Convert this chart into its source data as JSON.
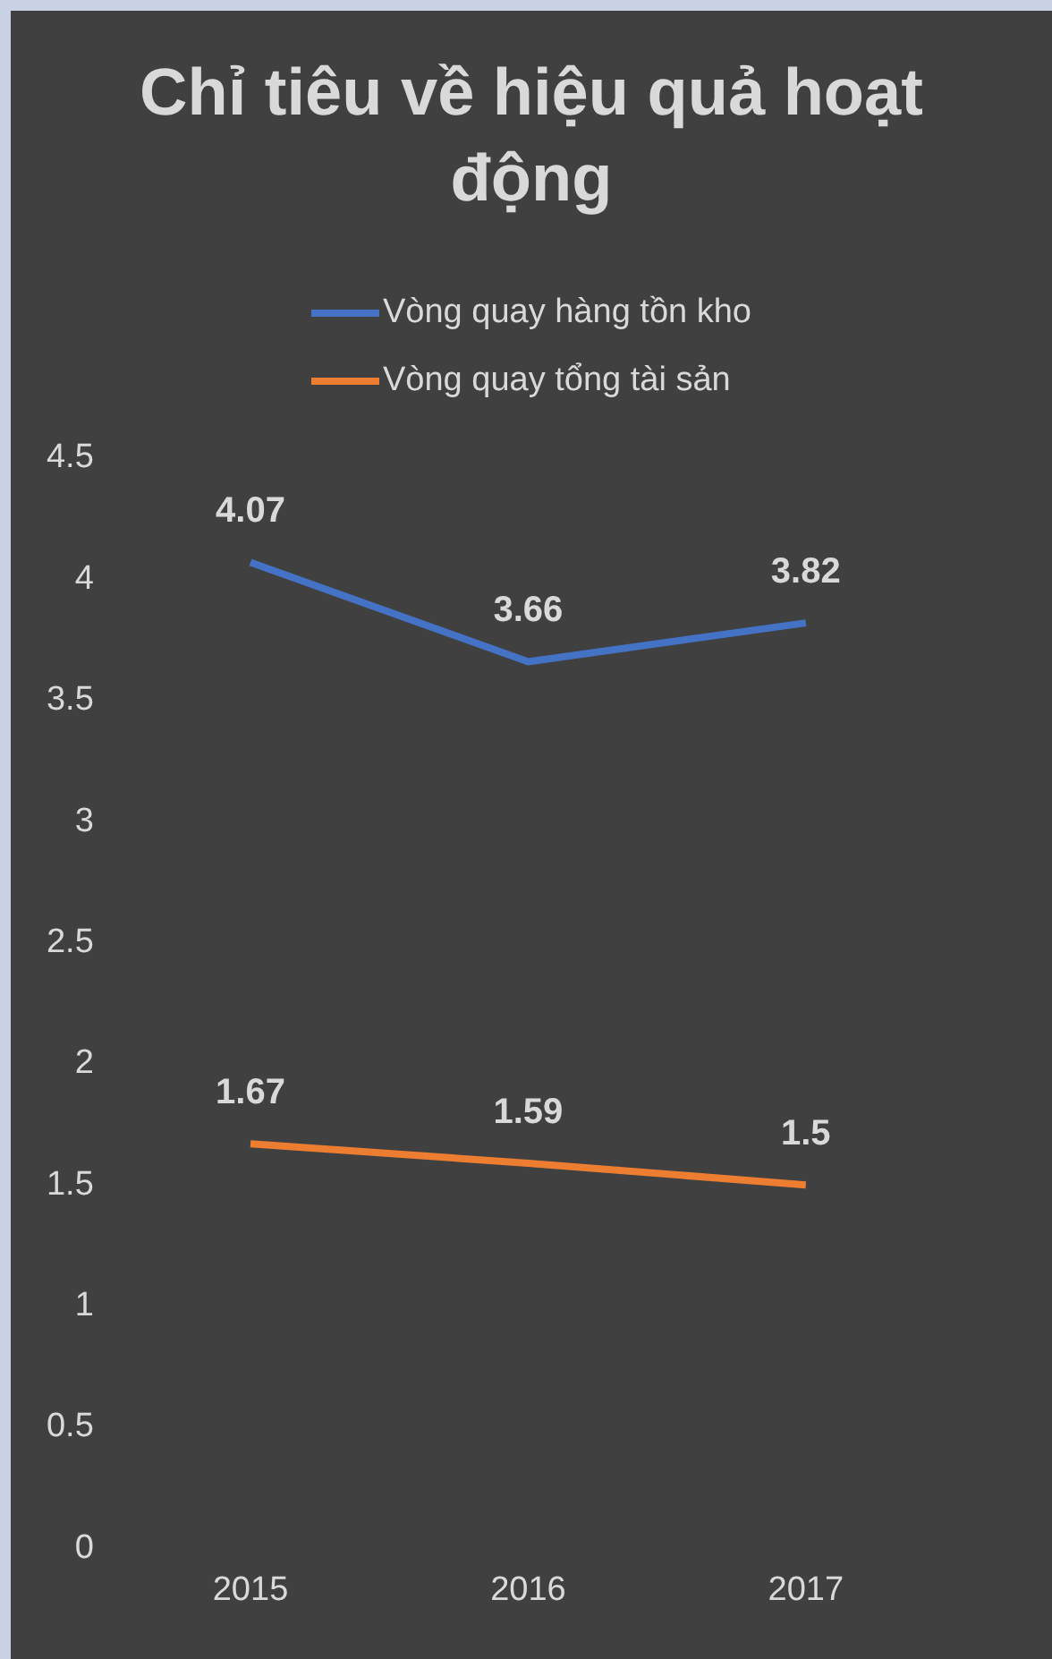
{
  "chart_data": {
    "type": "line",
    "title": "Chỉ tiêu về hiệu quả hoạt động",
    "categories": [
      "2015",
      "2016",
      "2017"
    ],
    "series": [
      {
        "name": "Vòng quay hàng tồn kho",
        "color": "#4472c4",
        "values": [
          4.07,
          3.66,
          3.82
        ]
      },
      {
        "name": "Vòng quay tổng tài sản",
        "color": "#ed7d31",
        "values": [
          1.67,
          1.59,
          1.5
        ]
      }
    ],
    "ylim": [
      0,
      4.5
    ],
    "yticks": [
      0,
      0.5,
      1,
      1.5,
      2,
      2.5,
      3,
      3.5,
      4,
      4.5
    ],
    "grid": false,
    "legend": "top",
    "marker": "none",
    "data_labels": true
  }
}
